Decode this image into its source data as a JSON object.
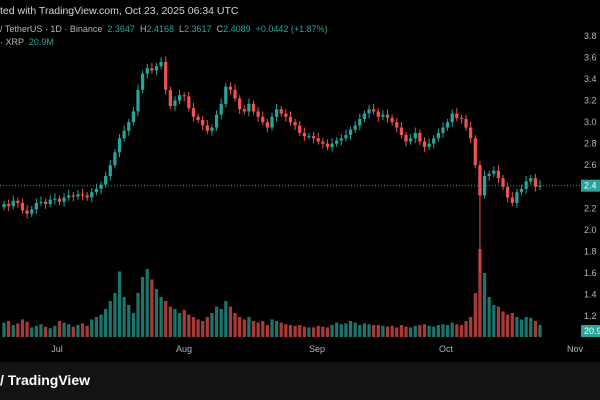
{
  "header": {
    "caption": "ted with TradingView.com, Oct 23, 2025 06:34 UTC",
    "symbol_line": "/ TetherUS · 1D · Binance",
    "ohlc": {
      "o_label": "O",
      "o": "2.3647",
      "h_label": "H",
      "h": "2.4168",
      "l_label": "L",
      "l": "2.3617",
      "c_label": "C",
      "c": "2.4089",
      "change": "+0.0442 (+1.87%)"
    },
    "volume_label": "· XRP",
    "volume_value": "20.9M"
  },
  "footer": {
    "brand": "TradingView",
    "logo_icon": "tradingview-logo-icon"
  },
  "colors": {
    "up": "#26a69a",
    "down": "#ef5350",
    "bg": "#000000"
  },
  "chart_data": {
    "type": "candlestick",
    "y_axis": {
      "ticks": [
        "3.8",
        "3.6",
        "3.4",
        "3.2",
        "3.0",
        "2.8",
        "2.6",
        "2.4",
        "2.2",
        "2.0",
        "1.8",
        "1.6",
        "1.4",
        "1.2"
      ],
      "range": [
        1.1,
        3.9
      ]
    },
    "x_axis": {
      "ticks": [
        "Jul",
        "Aug",
        "Sep",
        "Oct",
        "Nov"
      ]
    },
    "last_price_label": "2.4",
    "volume_label": "20.9",
    "candles_close": [
      2.24,
      2.22,
      2.27,
      2.25,
      2.18,
      2.15,
      2.19,
      2.25,
      2.26,
      2.24,
      2.28,
      2.29,
      2.26,
      2.3,
      2.32,
      2.31,
      2.33,
      2.32,
      2.3,
      2.35,
      2.38,
      2.42,
      2.5,
      2.6,
      2.72,
      2.85,
      2.92,
      3.0,
      3.1,
      3.3,
      3.45,
      3.5,
      3.48,
      3.52,
      3.56,
      3.3,
      3.15,
      3.2,
      3.25,
      3.24,
      3.13,
      3.05,
      3.02,
      2.97,
      2.92,
      2.95,
      3.07,
      3.17,
      3.33,
      3.3,
      3.22,
      3.12,
      3.1,
      3.17,
      3.1,
      3.05,
      3.0,
      2.95,
      3.05,
      3.12,
      3.08,
      3.05,
      3.0,
      2.97,
      2.9,
      2.87,
      2.87,
      2.85,
      2.82,
      2.8,
      2.77,
      2.8,
      2.83,
      2.85,
      2.88,
      2.93,
      2.97,
      3.03,
      3.08,
      3.12,
      3.1,
      3.05,
      3.07,
      3.04,
      3.0,
      2.95,
      2.88,
      2.82,
      2.85,
      2.9,
      2.82,
      2.77,
      2.8,
      2.85,
      2.9,
      2.95,
      3.0,
      3.08,
      3.04,
      3.03,
      2.95,
      2.85,
      2.6,
      2.32,
      2.5,
      2.52,
      2.55,
      2.48,
      2.4,
      2.3,
      2.25,
      2.35,
      2.38,
      2.45,
      2.48,
      2.4,
      2.41
    ],
    "volumes": [
      0.18,
      0.2,
      0.15,
      0.17,
      0.22,
      0.19,
      0.12,
      0.14,
      0.16,
      0.13,
      0.11,
      0.14,
      0.2,
      0.18,
      0.16,
      0.13,
      0.15,
      0.17,
      0.14,
      0.22,
      0.25,
      0.28,
      0.35,
      0.45,
      0.55,
      0.82,
      0.5,
      0.4,
      0.3,
      0.55,
      0.75,
      0.85,
      0.72,
      0.6,
      0.5,
      0.45,
      0.38,
      0.35,
      0.3,
      0.34,
      0.28,
      0.25,
      0.22,
      0.2,
      0.25,
      0.3,
      0.38,
      0.35,
      0.45,
      0.38,
      0.3,
      0.25,
      0.22,
      0.25,
      0.2,
      0.18,
      0.2,
      0.15,
      0.22,
      0.2,
      0.18,
      0.16,
      0.15,
      0.14,
      0.15,
      0.13,
      0.12,
      0.12,
      0.14,
      0.13,
      0.12,
      0.15,
      0.18,
      0.16,
      0.17,
      0.2,
      0.18,
      0.15,
      0.17,
      0.16,
      0.15,
      0.15,
      0.14,
      0.13,
      0.14,
      0.12,
      0.15,
      0.13,
      0.12,
      0.14,
      0.15,
      0.16,
      0.14,
      0.13,
      0.15,
      0.16,
      0.15,
      0.18,
      0.16,
      0.15,
      0.2,
      0.25,
      0.55,
      1.1,
      0.8,
      0.5,
      0.4,
      0.38,
      0.32,
      0.28,
      0.3,
      0.25,
      0.22,
      0.25,
      0.24,
      0.2,
      0.15
    ]
  }
}
